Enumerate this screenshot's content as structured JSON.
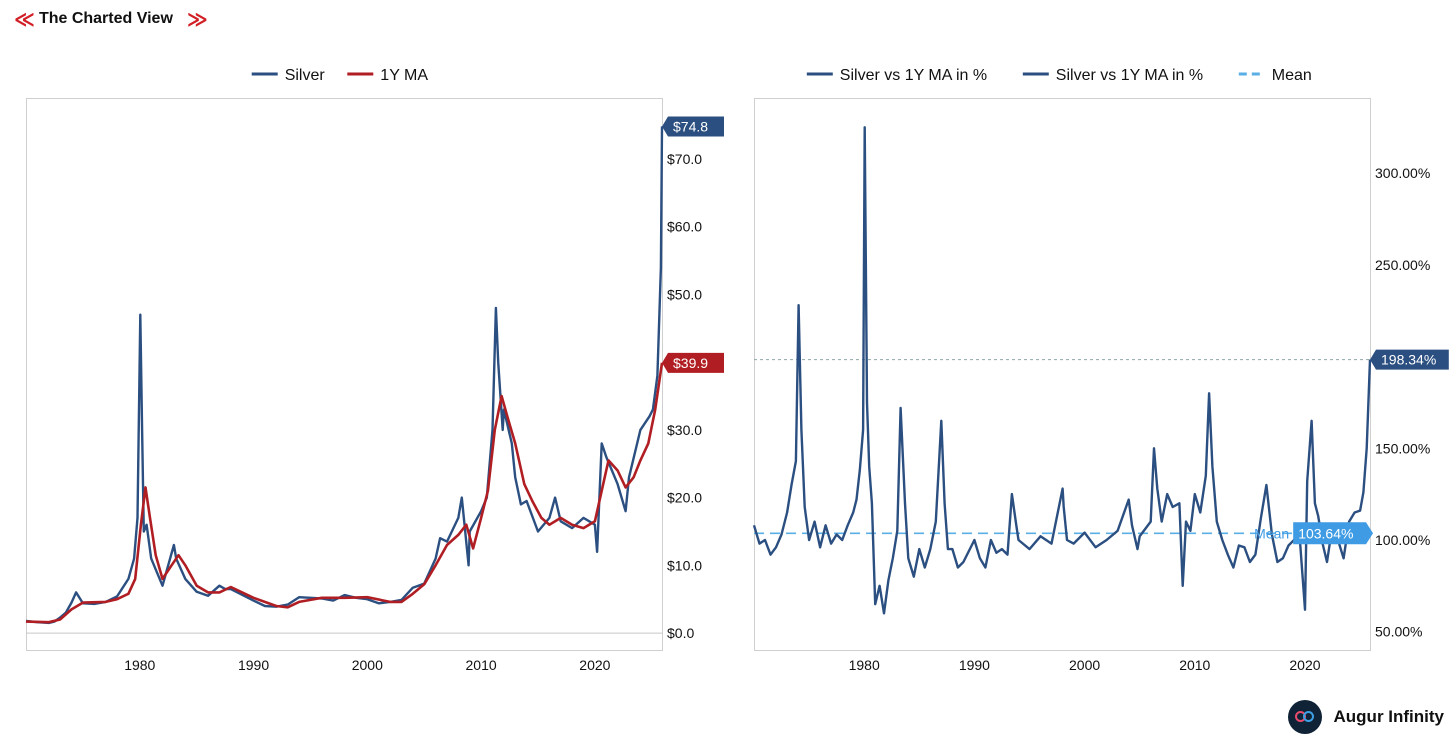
{
  "header": {
    "title": "The Charted View",
    "chevron_left": "≪",
    "chevron_right": "≫"
  },
  "footer": {
    "brand": "Augur Infinity",
    "logo_icon": "infinity-logo-icon"
  },
  "colors": {
    "silver": "#2b4f80",
    "ma": "#b01e23",
    "mean": "#5aaee6",
    "dotted": "#8fa8a8",
    "callout_mean": "#3f9be3"
  },
  "chart_data": [
    {
      "type": "line",
      "legend": [
        "Silver",
        "1Y MA"
      ],
      "x_ticks": [
        1980,
        1990,
        2000,
        2010,
        2020
      ],
      "xlim": [
        1970,
        2025.9
      ],
      "y_ticks": [
        0,
        10,
        20,
        30,
        40,
        50,
        60,
        70
      ],
      "y_tick_labels": [
        "$0.0",
        "$10.0",
        "$20.0",
        "$30.0",
        "$40.0",
        "$50.0",
        "$60.0",
        "$70.0"
      ],
      "ylim": [
        -2.5,
        79
      ],
      "callouts": [
        {
          "label": "$74.8",
          "value": 74.8,
          "series": "Silver"
        },
        {
          "label": "$39.9",
          "value": 39.9,
          "series": "1Y MA"
        }
      ],
      "series": [
        {
          "name": "Silver",
          "x": [
            1970,
            1971,
            1972,
            1972.5,
            1973,
            1973.5,
            1974,
            1974.4,
            1975,
            1976,
            1977,
            1978,
            1979,
            1979.5,
            1979.8,
            1980.05,
            1980.2,
            1980.35,
            1980.6,
            1981,
            1981.5,
            1982,
            1982.5,
            1983,
            1983.2,
            1984,
            1985,
            1986,
            1987,
            1987.5,
            1988,
            1990,
            1991,
            1992,
            1993,
            1994,
            1995,
            1996,
            1997,
            1998,
            1999,
            2000,
            2001,
            2002,
            2003,
            2004,
            2005,
            2006,
            2006.4,
            2007,
            2008,
            2008.3,
            2008.9,
            2009,
            2010,
            2010.5,
            2011,
            2011.3,
            2011.5,
            2011.9,
            2012,
            2012.7,
            2013,
            2013.5,
            2014,
            2015,
            2016,
            2016.5,
            2017,
            2018,
            2019,
            2020,
            2020.2,
            2020.6,
            2021,
            2022,
            2022.7,
            2023,
            2024,
            2024.8,
            2025.1,
            2025.5,
            2025.8,
            2025.9
          ],
          "y": [
            1.8,
            1.6,
            1.5,
            1.7,
            2.3,
            3.0,
            4.5,
            6.0,
            4.4,
            4.3,
            4.6,
            5.4,
            8.0,
            11.0,
            17.0,
            47.0,
            30.0,
            15.0,
            16.0,
            11.0,
            9.0,
            7.0,
            10.0,
            13.0,
            11.0,
            8.0,
            6.1,
            5.5,
            7.0,
            6.5,
            6.5,
            4.8,
            4.0,
            3.9,
            4.2,
            5.3,
            5.2,
            5.1,
            4.8,
            5.6,
            5.2,
            5.0,
            4.4,
            4.6,
            4.9,
            6.7,
            7.3,
            11.0,
            14.0,
            13.5,
            17.0,
            20.0,
            10.0,
            15.0,
            18.0,
            20.0,
            30.0,
            48.0,
            40.0,
            30.0,
            33.0,
            28.0,
            23.0,
            19.0,
            19.5,
            15.0,
            17.0,
            20.0,
            16.5,
            15.5,
            17.0,
            16.0,
            12.0,
            28.0,
            26.0,
            22.0,
            18.0,
            23.0,
            30.0,
            32.0,
            33.0,
            38.0,
            54.0,
            74.8
          ]
        },
        {
          "name": "1Y MA",
          "x": [
            1970,
            1972,
            1973,
            1974,
            1975,
            1977,
            1978,
            1979,
            1979.6,
            1980.1,
            1980.5,
            1980.9,
            1981.4,
            1982,
            1982.8,
            1983.4,
            1984,
            1985,
            1986,
            1987,
            1988,
            1990,
            1992,
            1993,
            1994,
            1996,
            1998,
            2000,
            2002,
            2003,
            2004,
            2005,
            2006,
            2007,
            2008,
            2008.7,
            2009.3,
            2010,
            2010.6,
            2011.2,
            2011.8,
            2012.3,
            2013,
            2013.8,
            2014.5,
            2015.3,
            2016,
            2017,
            2018,
            2019,
            2020,
            2020.6,
            2021.2,
            2022,
            2022.7,
            2023.4,
            2024,
            2024.7,
            2025.3,
            2025.9
          ],
          "y": [
            1.7,
            1.6,
            2.0,
            3.5,
            4.5,
            4.6,
            5.0,
            5.8,
            8.0,
            16.0,
            21.5,
            17.0,
            11.5,
            8.0,
            10.0,
            11.5,
            10.0,
            7.0,
            6.0,
            6.0,
            6.8,
            5.2,
            4.0,
            3.8,
            4.6,
            5.2,
            5.2,
            5.3,
            4.6,
            4.6,
            5.8,
            7.2,
            10.0,
            13.0,
            14.5,
            16.0,
            12.5,
            17.0,
            21.0,
            30.0,
            35.0,
            32.0,
            28.0,
            22.0,
            19.5,
            17.0,
            16.0,
            17.0,
            16.0,
            15.5,
            16.5,
            21.0,
            25.5,
            24.0,
            21.5,
            23.0,
            25.5,
            28.0,
            33.0,
            39.9
          ]
        }
      ]
    },
    {
      "type": "line",
      "legend": [
        "Silver vs 1Y MA in %",
        "Silver vs 1Y MA in %",
        "Mean"
      ],
      "x_ticks": [
        1980,
        1990,
        2000,
        2010,
        2020
      ],
      "xlim": [
        1970,
        2025.9
      ],
      "y_ticks": [
        50,
        100,
        150,
        200,
        250,
        300
      ],
      "y_tick_labels": [
        "50.00%",
        "100.00%",
        "150.00%",
        "200.00%",
        "250.00%",
        "300.00%"
      ],
      "ylim": [
        40,
        341
      ],
      "mean_value": 103.64,
      "callouts": [
        {
          "label": "198.34%",
          "value": 198.34
        },
        {
          "label": "103.64%",
          "value": 103.64,
          "prefix": "Mean"
        }
      ],
      "series": [
        {
          "name": "Silver vs 1Y MA in %",
          "x": [
            1970,
            1970.5,
            1971,
            1971.5,
            1972,
            1972.5,
            1973,
            1973.4,
            1973.8,
            1974.05,
            1974.3,
            1974.6,
            1975,
            1975.5,
            1976,
            1976.5,
            1977,
            1977.5,
            1978,
            1978.5,
            1979,
            1979.3,
            1979.6,
            1979.9,
            1980.05,
            1980.25,
            1980.45,
            1980.7,
            1981,
            1981.4,
            1981.8,
            1982.2,
            1982.6,
            1983,
            1983.3,
            1983.7,
            1984,
            1984.5,
            1985,
            1985.5,
            1986,
            1986.5,
            1987,
            1987.3,
            1987.6,
            1988,
            1988.5,
            1989,
            1990,
            1990.5,
            1991,
            1991.5,
            1992,
            1992.5,
            1993,
            1993.4,
            1993.8,
            1994,
            1995,
            1996,
            1997,
            1998,
            1998.1,
            1998.4,
            1999,
            2000,
            2001,
            2002,
            2003,
            2004,
            2004.3,
            2004.8,
            2005,
            2006,
            2006.3,
            2006.6,
            2007,
            2007.5,
            2008,
            2008.6,
            2008.9,
            2009.2,
            2009.6,
            2010,
            2010.5,
            2011,
            2011.3,
            2011.6,
            2012,
            2012.5,
            2013,
            2013.5,
            2014,
            2014.5,
            2015,
            2015.5,
            2016,
            2016.5,
            2017,
            2017.5,
            2018,
            2018.5,
            2019,
            2019.5,
            2020,
            2020.2,
            2020.6,
            2020.9,
            2021.2,
            2021.6,
            2022,
            2022.5,
            2023,
            2023.5,
            2024,
            2024.5,
            2025,
            2025.3,
            2025.6,
            2025.9
          ],
          "y": [
            108,
            98,
            100,
            92,
            96,
            103,
            115,
            130,
            143,
            228,
            160,
            118,
            100,
            110,
            96,
            108,
            98,
            103,
            100,
            108,
            115,
            122,
            138,
            160,
            325,
            175,
            140,
            120,
            65,
            75,
            60,
            78,
            90,
            105,
            172,
            120,
            90,
            80,
            95,
            85,
            95,
            110,
            165,
            120,
            95,
            95,
            85,
            88,
            100,
            90,
            85,
            100,
            93,
            95,
            92,
            125,
            108,
            100,
            95,
            102,
            98,
            128,
            118,
            100,
            98,
            104,
            96,
            100,
            105,
            122,
            108,
            95,
            102,
            110,
            150,
            128,
            110,
            125,
            118,
            120,
            75,
            110,
            105,
            125,
            115,
            135,
            180,
            140,
            110,
            100,
            92,
            85,
            97,
            96,
            88,
            92,
            112,
            130,
            103,
            88,
            90,
            97,
            100,
            103,
            62,
            132,
            165,
            120,
            113,
            98,
            88,
            108,
            100,
            90,
            110,
            115,
            116,
            126,
            150,
            198.34
          ]
        }
      ]
    }
  ]
}
